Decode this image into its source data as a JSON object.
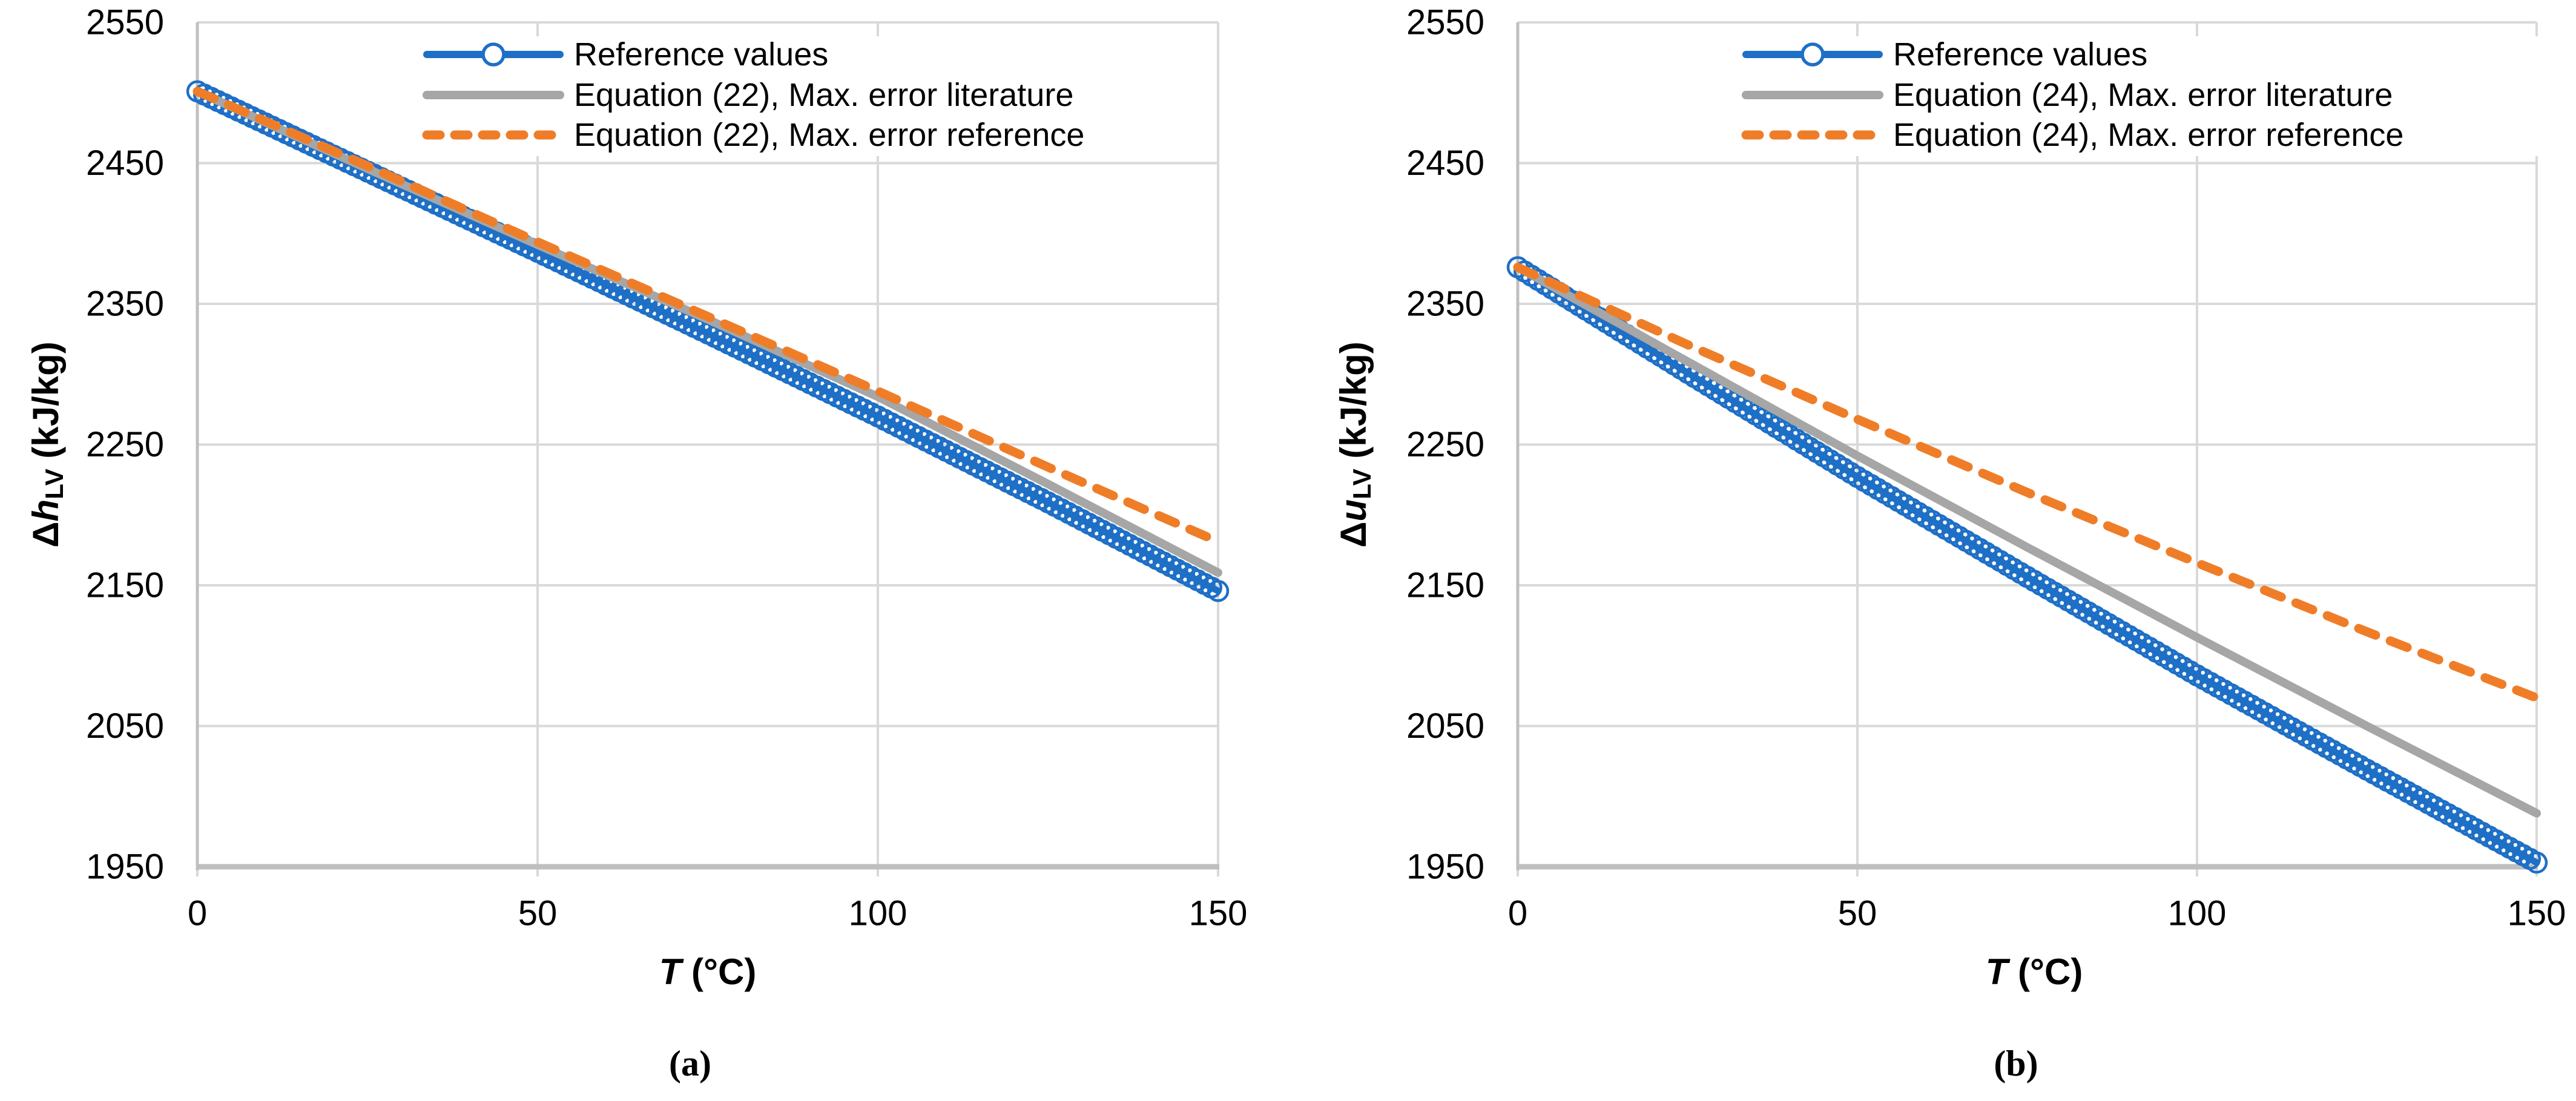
{
  "style": {
    "background": "#FFFFFF",
    "grid_color": "#D9D9D9",
    "axis_color": "#BFBFBF",
    "text_color": "#000000",
    "blue": "#1E6FC6",
    "gray": "#A6A6A6",
    "orange": "#EF7D28"
  },
  "chart_data": [
    {
      "id": "a",
      "type": "line",
      "panel_caption": "(a)",
      "x": [
        0,
        25,
        50,
        75,
        100,
        125,
        150
      ],
      "series": [
        {
          "name": "Reference values",
          "color": "#1E6FC6",
          "style": "solid-markers",
          "values": [
            2501,
            2444,
            2387,
            2329,
            2270,
            2209,
            2146
          ]
        },
        {
          "name": "Equation (22), Max. error literature",
          "color": "#A6A6A6",
          "style": "solid",
          "values": [
            2501,
            2446,
            2392,
            2339,
            2284,
            2222,
            2159
          ]
        },
        {
          "name": "Equation (22), Max. error reference",
          "color": "#EF7D28",
          "style": "dashed",
          "values": [
            2501,
            2448,
            2394,
            2341,
            2288,
            2234,
            2181
          ]
        }
      ],
      "xlabel": {
        "symbol": "T",
        "unit": " (°C)"
      },
      "ylabel": {
        "prefix": "Δ",
        "symbol": "h",
        "subscript": "LV",
        "unit": " (kJ/kg)"
      },
      "xlim": [
        0,
        150
      ],
      "ylim": [
        1950,
        2550
      ],
      "xticks": [
        0,
        50,
        100,
        150
      ],
      "yticks": [
        1950,
        2050,
        2150,
        2250,
        2350,
        2450,
        2550
      ],
      "grid": true,
      "legend_position": "top-center"
    },
    {
      "id": "b",
      "type": "line",
      "panel_caption": "(b)",
      "x": [
        0,
        25,
        50,
        75,
        100,
        125,
        150
      ],
      "series": [
        {
          "name": "Reference values",
          "color": "#1E6FC6",
          "style": "solid-markers",
          "values": [
            2376,
            2301,
            2227,
            2156,
            2086,
            2019,
            1953
          ]
        },
        {
          "name": "Equation (24), Max. error literature",
          "color": "#A6A6A6",
          "style": "solid",
          "values": [
            2376,
            2309,
            2242,
            2177,
            2113,
            2050,
            1988
          ]
        },
        {
          "name": "Equation (24), Max. error reference",
          "color": "#EF7D28",
          "style": "dashed",
          "values": [
            2376,
            2321,
            2268,
            2216,
            2166,
            2117,
            2070
          ]
        }
      ],
      "xlabel": {
        "symbol": "T",
        "unit": " (°C)"
      },
      "ylabel": {
        "prefix": "Δ",
        "symbol": "u",
        "subscript": "LV",
        "unit": " (kJ/kg)"
      },
      "xlim": [
        0,
        150
      ],
      "ylim": [
        1950,
        2550
      ],
      "xticks": [
        0,
        50,
        100,
        150
      ],
      "yticks": [
        1950,
        2050,
        2150,
        2250,
        2350,
        2450,
        2550
      ],
      "grid": true,
      "legend_position": "top-center"
    }
  ]
}
